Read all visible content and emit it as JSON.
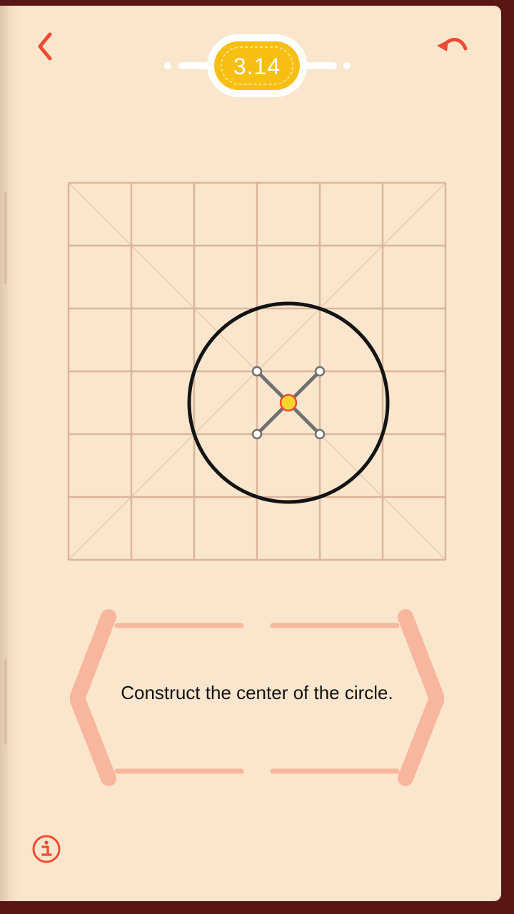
{
  "level": {
    "label": "3.14",
    "badge_color": "#f7be14",
    "ring_color": "#ffffff"
  },
  "header": {
    "back_icon": "chevron-left-icon",
    "undo_icon": "undo-icon",
    "accent_color": "#ef4b33"
  },
  "board": {
    "grid_cells": 6,
    "grid_color": "#d9b59a",
    "diagonal_color": "#ead1b6",
    "circle_color": "#141414",
    "segment_color": "#707070",
    "center_point_color": "#fcd52c",
    "center_point_stroke": "#ef4b33"
  },
  "hint": {
    "text": "Construct the center of the circle.",
    "frame_color": "#f8b69d"
  },
  "footer": {
    "info_icon": "info-icon"
  }
}
